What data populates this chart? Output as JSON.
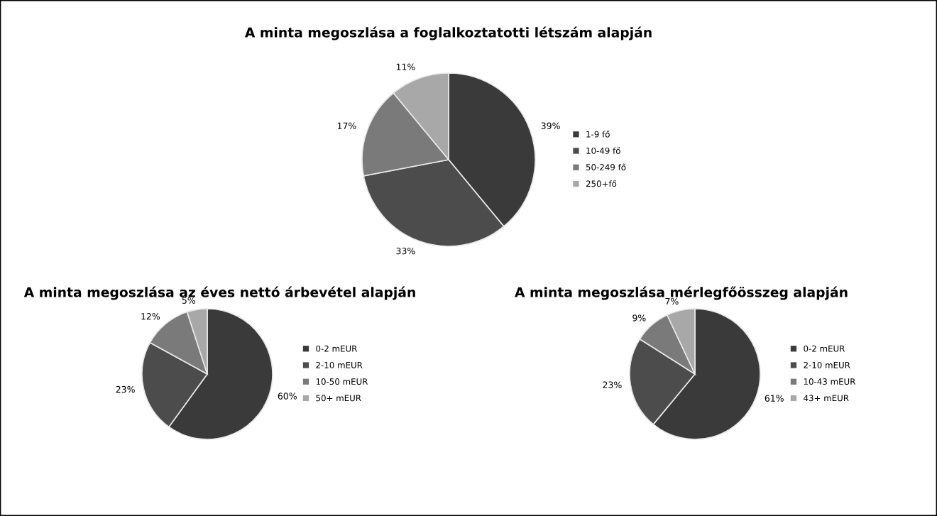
{
  "chart_data": [
    {
      "type": "pie",
      "title": "A minta megoszlása a foglalkoztatotti létszám alapján",
      "categories": [
        "1-9 fő",
        "10-49 fő",
        "50-249 fő",
        "250+fő"
      ],
      "values": [
        39,
        33,
        17,
        11
      ],
      "value_labels": [
        "39%",
        "33%",
        "17%",
        "11%"
      ],
      "colors": [
        "#3a3a3a",
        "#4c4c4c",
        "#7a7a7a",
        "#a8a8a8"
      ],
      "legend": "right"
    },
    {
      "type": "pie",
      "title": "A minta megoszlása az éves nettó árbevétel alapján",
      "categories": [
        "0-2 mEUR",
        "2-10 mEUR",
        "10-50 mEUR",
        "50+ mEUR"
      ],
      "values": [
        60,
        23,
        12,
        5
      ],
      "value_labels": [
        "60%",
        "23%",
        "12%",
        "5%"
      ],
      "colors": [
        "#3a3a3a",
        "#4c4c4c",
        "#7a7a7a",
        "#a8a8a8"
      ],
      "legend": "right"
    },
    {
      "type": "pie",
      "title": "A minta megoszlása mérlegfőösszeg alapján",
      "categories": [
        "0-2 mEUR",
        "2-10 mEUR",
        "10-43 mEUR",
        "43+ mEUR"
      ],
      "values": [
        61,
        23,
        9,
        7
      ],
      "value_labels": [
        "61%",
        "23%",
        "9%",
        "7%"
      ],
      "colors": [
        "#3a3a3a",
        "#4c4c4c",
        "#7a7a7a",
        "#a8a8a8"
      ],
      "legend": "right"
    }
  ]
}
